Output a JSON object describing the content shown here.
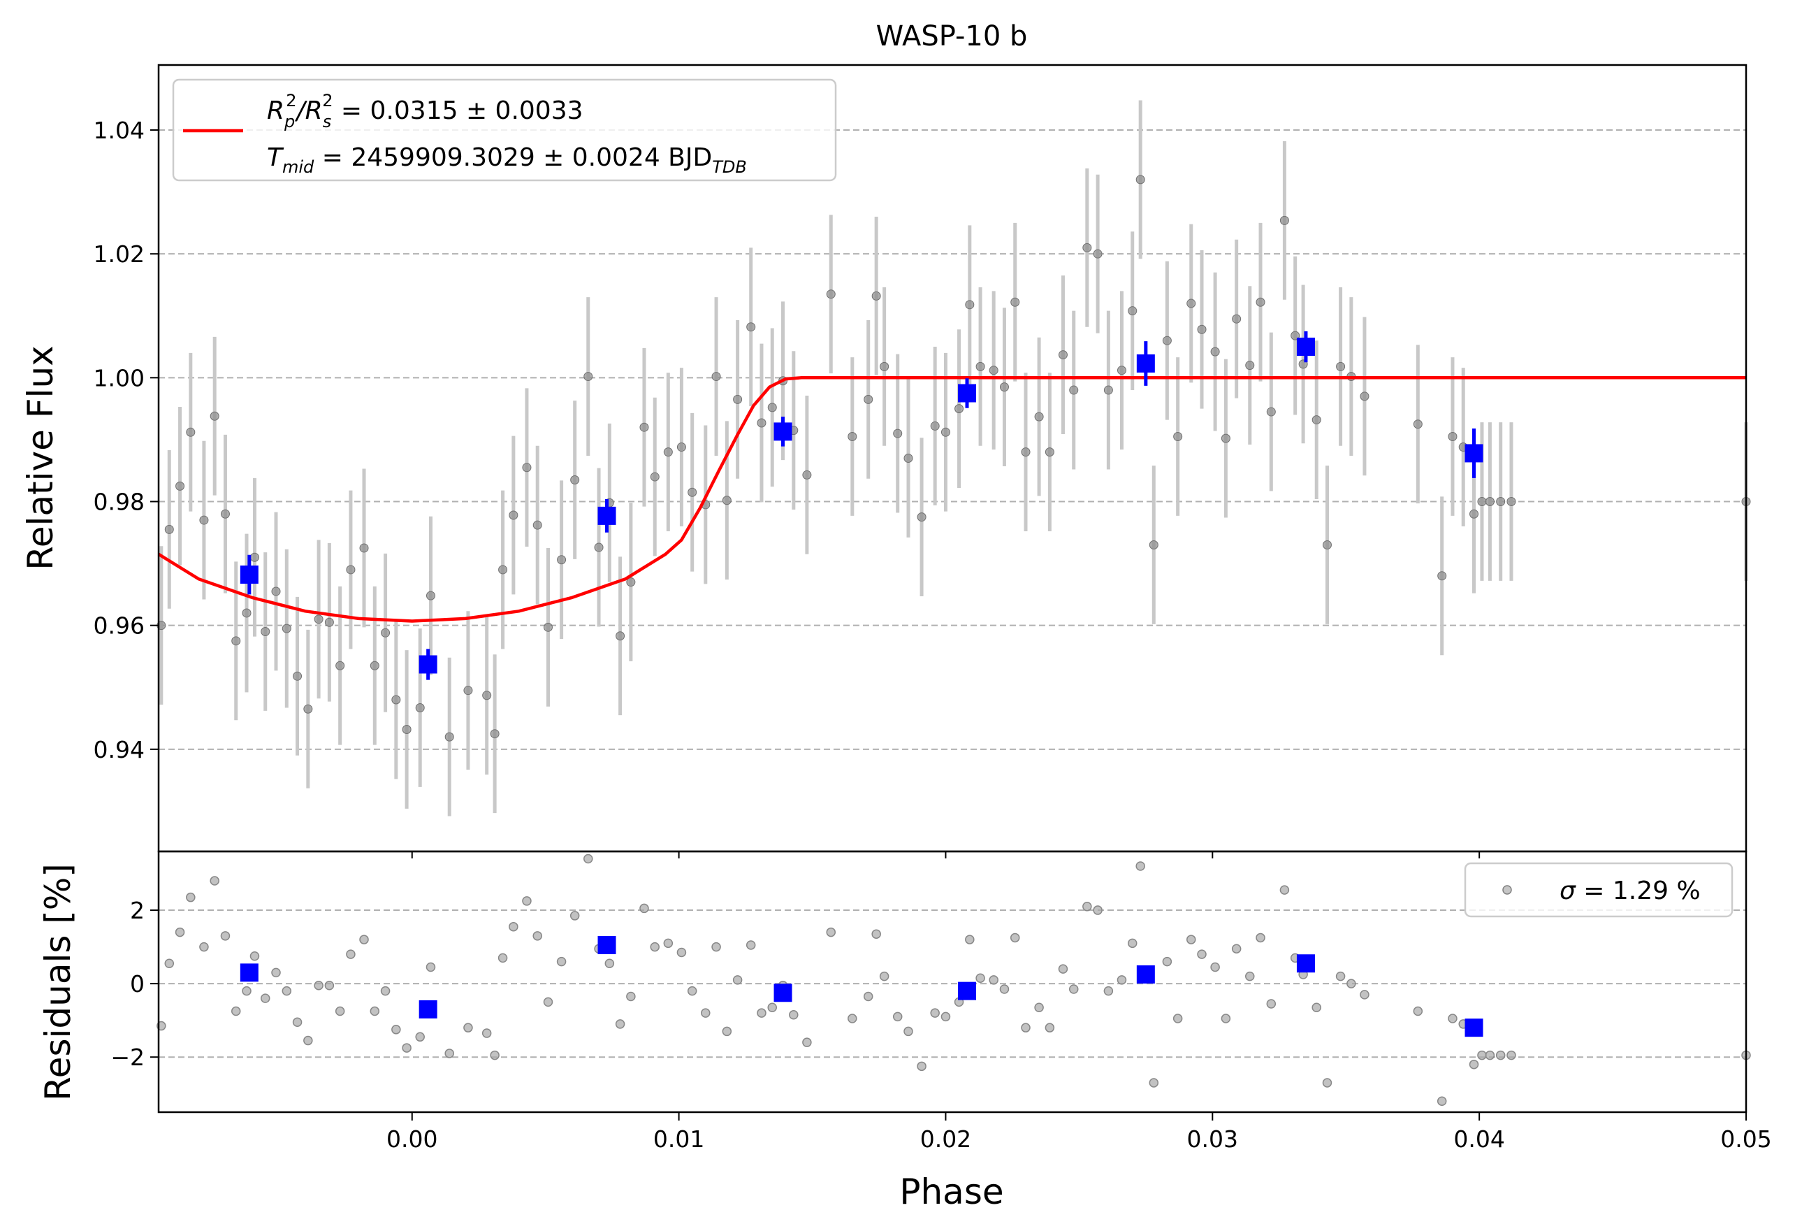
{
  "chart_data": [
    {
      "panel": "top",
      "type": "scatter",
      "title": "WASP-10 b",
      "xlabel": "",
      "ylabel": "Relative Flux",
      "xlim": [
        -0.0095,
        0.05
      ],
      "ylim": [
        0.9235,
        1.0505
      ],
      "yticks": [
        0.94,
        0.96,
        0.98,
        1.0,
        1.02,
        1.04
      ],
      "ytick_labels": [
        "0.94",
        "0.96",
        "0.98",
        "1.00",
        "1.02",
        "1.04"
      ],
      "grid": "horizontal dashed",
      "legend": {
        "placement": "top-left",
        "line1": {
          "prefix": "R",
          "sub1": "p",
          "sup1": "2",
          "slash": "/R",
          "sub2": "s",
          "sup2": "2",
          "rest": " = 0.0315 ± 0.0033"
        },
        "line2": {
          "prefix": "T",
          "sub": "mid",
          "rest": " = 2459909.3029 ± 0.0024 BJD",
          "sub2": "TDB"
        }
      },
      "series": [
        {
          "name": "raw",
          "style": "gray points with error bars",
          "color": "#808080",
          "errcolor": "#c8c8c8",
          "x": [
            -0.0094,
            -0.0091,
            -0.0087,
            -0.0083,
            -0.0078,
            -0.0074,
            -0.007,
            -0.0066,
            -0.0062,
            -0.0059,
            -0.0055,
            -0.0051,
            -0.0047,
            -0.0043,
            -0.0039,
            -0.0035,
            -0.0031,
            -0.0027,
            -0.0023,
            -0.0018,
            -0.0014,
            -0.001,
            -0.0006,
            -0.0002,
            0.0003,
            0.0007,
            0.0014,
            0.0021,
            0.0028,
            0.0031,
            0.0034,
            0.0038,
            0.0043,
            0.0047,
            0.0051,
            0.0056,
            0.0061,
            0.0066,
            0.007,
            0.0074,
            0.0078,
            0.0082,
            0.0087,
            0.0091,
            0.0096,
            0.0101,
            0.0105,
            0.011,
            0.0114,
            0.0118,
            0.0122,
            0.0127,
            0.0131,
            0.0135,
            0.0139,
            0.0143,
            0.0148,
            0.0157,
            0.0165,
            0.0171,
            0.0174,
            0.0177,
            0.0182,
            0.0186,
            0.0191,
            0.0196,
            0.02,
            0.0205,
            0.0209,
            0.0213,
            0.0218,
            0.0222,
            0.0226,
            0.023,
            0.0235,
            0.0239,
            0.0244,
            0.0248,
            0.0253,
            0.0257,
            0.0261,
            0.0266,
            0.027,
            0.0273,
            0.0278,
            0.0283,
            0.0287,
            0.0292,
            0.0296,
            0.0301,
            0.0305,
            0.0309,
            0.0314,
            0.0318,
            0.0322,
            0.0327,
            0.0331,
            0.0334,
            0.0339,
            0.0343,
            0.0348,
            0.0352,
            0.0357,
            0.0377,
            0.0386,
            0.039,
            0.0394,
            0.0398,
            0.0401,
            0.0404,
            0.0408,
            0.0412,
            0.05
          ],
          "y": [
            0.96,
            0.9755,
            0.9825,
            0.9912,
            0.977,
            0.9938,
            0.978,
            0.9575,
            0.962,
            0.971,
            0.959,
            0.9655,
            0.9595,
            0.9518,
            0.9465,
            0.961,
            0.9605,
            0.9535,
            0.969,
            0.9725,
            0.9535,
            0.9588,
            0.948,
            0.9432,
            0.9467,
            0.9648,
            0.942,
            0.9495,
            0.9487,
            0.9425,
            0.969,
            0.9778,
            0.9855,
            0.9762,
            0.9597,
            0.9706,
            0.9835,
            1.0002,
            0.9726,
            0.9798,
            0.9583,
            0.967,
            0.992,
            0.984,
            0.988,
            0.9888,
            0.9815,
            0.9795,
            1.0002,
            0.9802,
            0.9965,
            1.0082,
            0.9927,
            0.9952,
            0.9995,
            0.9915,
            0.9843,
            1.0135,
            0.9905,
            0.9965,
            1.0132,
            1.0018,
            0.991,
            0.987,
            0.9775,
            0.9922,
            0.9912,
            0.995,
            1.0118,
            1.0018,
            1.0012,
            0.9985,
            1.0122,
            0.988,
            0.9937,
            0.988,
            1.0037,
            0.998,
            1.021,
            1.02,
            0.998,
            1.0012,
            1.0108,
            1.032,
            0.973,
            1.006,
            0.9905,
            1.012,
            1.0078,
            1.0042,
            0.9902,
            1.0095,
            1.002,
            1.0122,
            0.9945,
            1.0254,
            1.0068,
            1.0022,
            0.9932,
            0.973,
            1.0018,
            1.0002,
            0.997,
            0.9925,
            0.968,
            0.9905,
            0.9888,
            0.978,
            0.98,
            0.98,
            0.98,
            0.98,
            0.98
          ],
          "yerr": 0.0128
        },
        {
          "name": "binned",
          "style": "blue squares with error bars",
          "color": "#0000ff",
          "x": [
            -0.0061,
            0.0006,
            0.0073,
            0.0139,
            0.0208,
            0.0275,
            0.0335,
            0.0398
          ],
          "y": [
            0.9682,
            0.9537,
            0.9777,
            0.9913,
            0.9975,
            1.0023,
            1.005,
            0.9878
          ],
          "yerr": [
            0.0032,
            0.0025,
            0.0027,
            0.0024,
            0.0024,
            0.0036,
            0.0025,
            0.004
          ]
        },
        {
          "name": "model",
          "style": "red line",
          "color": "#ff0000",
          "x": [
            -0.0095,
            -0.008,
            -0.006,
            -0.004,
            -0.002,
            0.0,
            0.002,
            0.004,
            0.006,
            0.008,
            0.0095,
            0.0101,
            0.0108,
            0.0115,
            0.0122,
            0.0128,
            0.0134,
            0.014,
            0.0146,
            0.05
          ],
          "y": [
            0.9715,
            0.9675,
            0.9645,
            0.9623,
            0.9611,
            0.9607,
            0.9611,
            0.9623,
            0.9645,
            0.9675,
            0.9715,
            0.9738,
            0.979,
            0.985,
            0.9908,
            0.9955,
            0.9985,
            0.9998,
            1.0,
            1.0
          ]
        }
      ]
    },
    {
      "panel": "bottom",
      "type": "scatter",
      "title": "",
      "xlabel": "Phase",
      "ylabel": "Residuals [%]",
      "xlim": [
        -0.0095,
        0.05
      ],
      "ylim": [
        -3.5,
        3.6
      ],
      "xticks": [
        0.0,
        0.01,
        0.02,
        0.03,
        0.04,
        0.05
      ],
      "xtick_labels": [
        "0.00",
        "0.01",
        "0.02",
        "0.03",
        "0.04",
        "0.05"
      ],
      "yticks": [
        -2,
        0,
        2
      ],
      "ytick_labels": [
        "−2",
        "0",
        "2"
      ],
      "grid": "horizontal dashed",
      "legend": {
        "placement": "top-right",
        "prefix": "σ",
        "rest": " = 1.29 %"
      },
      "series": [
        {
          "name": "residuals",
          "style": "gray points",
          "color": "#a0a0a0",
          "x": [
            -0.0094,
            -0.0091,
            -0.0087,
            -0.0083,
            -0.0078,
            -0.0074,
            -0.007,
            -0.0066,
            -0.0062,
            -0.0059,
            -0.0055,
            -0.0051,
            -0.0047,
            -0.0043,
            -0.0039,
            -0.0035,
            -0.0031,
            -0.0027,
            -0.0023,
            -0.0018,
            -0.0014,
            -0.001,
            -0.0006,
            -0.0002,
            0.0003,
            0.0007,
            0.0014,
            0.0021,
            0.0028,
            0.0031,
            0.0034,
            0.0038,
            0.0043,
            0.0047,
            0.0051,
            0.0056,
            0.0061,
            0.0066,
            0.007,
            0.0074,
            0.0078,
            0.0082,
            0.0087,
            0.0091,
            0.0096,
            0.0101,
            0.0105,
            0.011,
            0.0114,
            0.0118,
            0.0122,
            0.0127,
            0.0131,
            0.0135,
            0.0139,
            0.0143,
            0.0148,
            0.0157,
            0.0165,
            0.0171,
            0.0174,
            0.0177,
            0.0182,
            0.0186,
            0.0191,
            0.0196,
            0.02,
            0.0205,
            0.0209,
            0.0213,
            0.0218,
            0.0222,
            0.0226,
            0.023,
            0.0235,
            0.0239,
            0.0244,
            0.0248,
            0.0253,
            0.0257,
            0.0261,
            0.0266,
            0.027,
            0.0273,
            0.0278,
            0.0283,
            0.0287,
            0.0292,
            0.0296,
            0.0301,
            0.0305,
            0.0309,
            0.0314,
            0.0318,
            0.0322,
            0.0327,
            0.0331,
            0.0334,
            0.0339,
            0.0343,
            0.0348,
            0.0352,
            0.0357,
            0.0377,
            0.0386,
            0.039,
            0.0394,
            0.0398,
            0.0401,
            0.0404,
            0.0408,
            0.0412,
            0.05
          ],
          "y": [
            -1.15,
            0.55,
            1.4,
            2.35,
            1.0,
            2.8,
            1.3,
            -0.75,
            -0.2,
            0.75,
            -0.4,
            0.3,
            -0.2,
            -1.05,
            -1.55,
            -0.05,
            -0.05,
            -0.75,
            0.8,
            1.2,
            -0.75,
            -0.2,
            -1.25,
            -1.75,
            -1.45,
            0.45,
            -1.9,
            -1.2,
            -1.35,
            -1.95,
            0.7,
            1.55,
            2.25,
            1.3,
            -0.5,
            0.6,
            1.85,
            3.4,
            0.95,
            0.55,
            -1.1,
            -0.35,
            2.05,
            1.0,
            1.1,
            0.85,
            -0.2,
            -0.8,
            1.0,
            -1.3,
            0.1,
            1.05,
            -0.8,
            -0.65,
            -0.05,
            -0.85,
            -1.6,
            1.4,
            -0.95,
            -0.35,
            1.35,
            0.2,
            -0.9,
            -1.3,
            -2.25,
            -0.8,
            -0.9,
            -0.5,
            1.2,
            0.15,
            0.1,
            -0.15,
            1.25,
            -1.2,
            -0.65,
            -1.2,
            0.4,
            -0.15,
            2.1,
            2.0,
            -0.2,
            0.1,
            1.1,
            3.2,
            -2.7,
            0.6,
            -0.95,
            1.2,
            0.8,
            0.45,
            -0.95,
            0.95,
            0.2,
            1.25,
            -0.55,
            2.55,
            0.7,
            0.25,
            -0.65,
            -2.7,
            0.2,
            0.0,
            -0.3,
            -0.75,
            -3.2,
            -0.95,
            -1.1,
            -2.2,
            -1.95,
            -1.95,
            -1.95,
            -1.95,
            -1.95
          ]
        },
        {
          "name": "binned residuals",
          "style": "blue squares",
          "color": "#0000ff",
          "x": [
            -0.0061,
            0.0006,
            0.0073,
            0.0139,
            0.0208,
            0.0275,
            0.0335,
            0.0398
          ],
          "y": [
            0.3,
            -0.7,
            1.05,
            -0.25,
            -0.2,
            0.25,
            0.55,
            -1.2
          ]
        }
      ]
    }
  ]
}
